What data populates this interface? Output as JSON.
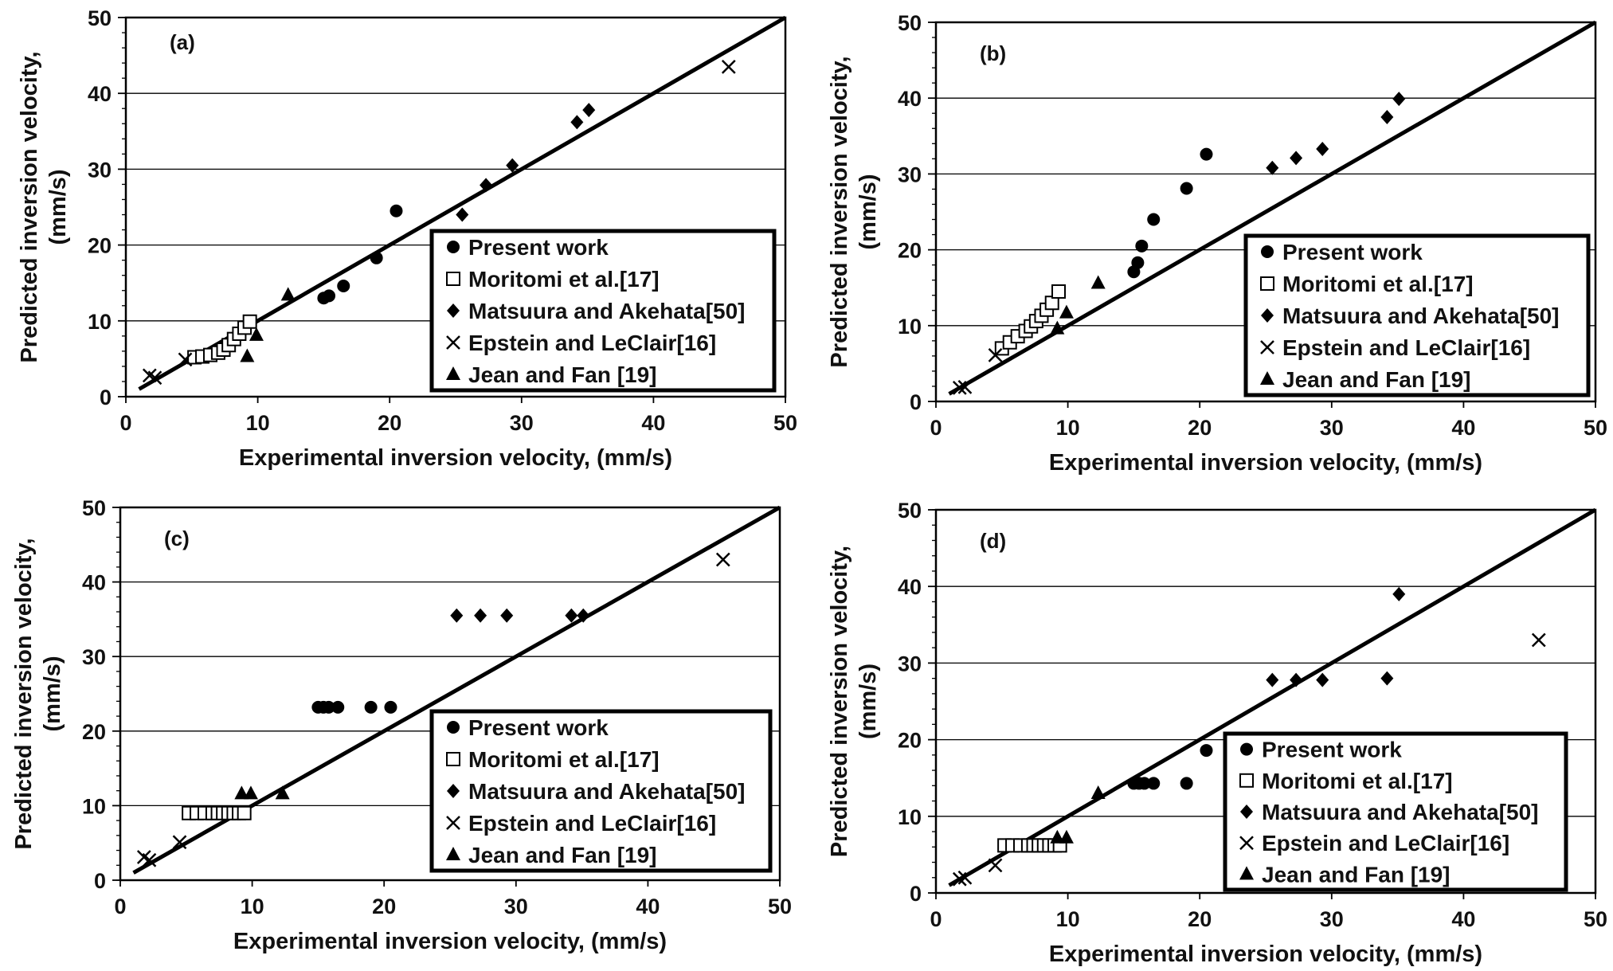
{
  "legend": {
    "entries": [
      "Present work",
      "Moritomi et al.[17]",
      "Matsuura and Akehata[50]",
      "Epstein and LeClair[16]",
      "Jean and Fan [19]"
    ]
  },
  "chart_data": [
    {
      "type": "scatter",
      "panel": "(a)",
      "xlabel": "Experimental inversion velocity, (mm/s)",
      "ylabel": "Predicted inversion velocity, (mm/s)",
      "xlim": [
        0,
        50
      ],
      "ylim": [
        0,
        50
      ],
      "xticks": [
        0,
        10,
        20,
        30,
        40,
        50
      ],
      "yticks": [
        0,
        10,
        20,
        30,
        40,
        50
      ],
      "grid": "horizontal",
      "legend_position": "bottom-right",
      "parity_line": [
        [
          1,
          1
        ],
        [
          50,
          50
        ]
      ],
      "series": [
        {
          "name": "Present work",
          "marker": "circle",
          "points": [
            [
              15,
              13
            ],
            [
              15.4,
              13.3
            ],
            [
              16.5,
              14.6
            ],
            [
              19,
              18.3
            ],
            [
              20.5,
              24.5
            ]
          ]
        },
        {
          "name": "Moritomi et al.[17]",
          "marker": "open-square",
          "points": [
            [
              5.2,
              5.2
            ],
            [
              5.8,
              5.3
            ],
            [
              6.4,
              5.5
            ],
            [
              7,
              5.8
            ],
            [
              7.4,
              6.2
            ],
            [
              7.8,
              6.8
            ],
            [
              8.2,
              7.6
            ],
            [
              8.6,
              8.3
            ],
            [
              9,
              9.1
            ],
            [
              9.4,
              9.9
            ]
          ]
        },
        {
          "name": "Matsuura and Akehata[50]",
          "marker": "diamond",
          "points": [
            [
              25.5,
              24
            ],
            [
              27.3,
              27.9
            ],
            [
              29.3,
              30.5
            ],
            [
              34.2,
              36.2
            ],
            [
              35.1,
              37.8
            ]
          ]
        },
        {
          "name": "Epstein and LeClair[16]",
          "marker": "cross",
          "points": [
            [
              1.8,
              2.8
            ],
            [
              2.2,
              2.5
            ],
            [
              4.5,
              4.9
            ],
            [
              45.7,
              43.5
            ]
          ]
        },
        {
          "name": "Jean and Fan [19]",
          "marker": "triangle",
          "points": [
            [
              9.2,
              5.3
            ],
            [
              9.9,
              8.1
            ],
            [
              12.3,
              13.4
            ]
          ]
        }
      ]
    },
    {
      "type": "scatter",
      "panel": "(b)",
      "xlabel": "Experimental inversion velocity, (mm/s)",
      "ylabel": "Predicted inversion velocity, (mm/s)",
      "xlim": [
        0,
        50
      ],
      "ylim": [
        0,
        50
      ],
      "xticks": [
        0,
        10,
        20,
        30,
        40,
        50
      ],
      "yticks": [
        0,
        10,
        20,
        30,
        40,
        50
      ],
      "grid": "horizontal",
      "legend_position": "bottom-right",
      "parity_line": [
        [
          1,
          1
        ],
        [
          50,
          50
        ]
      ],
      "series": [
        {
          "name": "Present work",
          "marker": "circle",
          "points": [
            [
              15,
              17.1
            ],
            [
              15.3,
              18.3
            ],
            [
              15.6,
              20.5
            ],
            [
              16.5,
              24
            ],
            [
              19,
              28.1
            ],
            [
              20.5,
              32.6
            ]
          ]
        },
        {
          "name": "Moritomi et al.[17]",
          "marker": "open-square",
          "points": [
            [
              5,
              7
            ],
            [
              5.6,
              7.8
            ],
            [
              6.2,
              8.6
            ],
            [
              6.8,
              9.3
            ],
            [
              7.2,
              9.9
            ],
            [
              7.6,
              10.6
            ],
            [
              8,
              11.3
            ],
            [
              8.4,
              12.1
            ],
            [
              8.8,
              13
            ],
            [
              9.3,
              14.5
            ]
          ]
        },
        {
          "name": "Matsuura and Akehata[50]",
          "marker": "diamond",
          "points": [
            [
              25.5,
              30.8
            ],
            [
              27.3,
              32.1
            ],
            [
              29.3,
              33.3
            ],
            [
              34.2,
              37.5
            ],
            [
              35.1,
              39.9
            ]
          ]
        },
        {
          "name": "Epstein and LeClair[16]",
          "marker": "cross",
          "points": [
            [
              1.8,
              1.8
            ],
            [
              2.2,
              1.9
            ],
            [
              4.5,
              6.1
            ]
          ]
        },
        {
          "name": "Jean and Fan [19]",
          "marker": "triangle",
          "points": [
            [
              9.2,
              9.6
            ],
            [
              9.9,
              11.7
            ],
            [
              12.3,
              15.6
            ]
          ]
        }
      ]
    },
    {
      "type": "scatter",
      "panel": "(c)",
      "xlabel": "Experimental inversion velocity, (mm/s)",
      "ylabel": "Predicted inversion velocity, (mm/s)",
      "xlim": [
        0,
        50
      ],
      "ylim": [
        0,
        50
      ],
      "xticks": [
        0,
        10,
        20,
        30,
        40,
        50
      ],
      "yticks": [
        0,
        10,
        20,
        30,
        40,
        50
      ],
      "grid": "horizontal",
      "legend_position": "bottom-right",
      "parity_line": [
        [
          1,
          1
        ],
        [
          50,
          50
        ]
      ],
      "series": [
        {
          "name": "Present work",
          "marker": "circle",
          "points": [
            [
              15,
              23.2
            ],
            [
              15.4,
              23.2
            ],
            [
              15.8,
              23.2
            ],
            [
              16.5,
              23.2
            ],
            [
              19,
              23.2
            ],
            [
              20.5,
              23.2
            ]
          ]
        },
        {
          "name": "Moritomi et al.[17]",
          "marker": "open-square",
          "points": [
            [
              5.2,
              9
            ],
            [
              5.8,
              9
            ],
            [
              6.4,
              9
            ],
            [
              7,
              9
            ],
            [
              7.4,
              9
            ],
            [
              7.8,
              9
            ],
            [
              8.2,
              9
            ],
            [
              8.6,
              9
            ],
            [
              9,
              9
            ],
            [
              9.4,
              9
            ]
          ]
        },
        {
          "name": "Matsuura and Akehata[50]",
          "marker": "diamond",
          "points": [
            [
              25.5,
              35.5
            ],
            [
              27.3,
              35.5
            ],
            [
              29.3,
              35.5
            ],
            [
              34.2,
              35.5
            ],
            [
              35.1,
              35.5
            ]
          ]
        },
        {
          "name": "Epstein and LeClair[16]",
          "marker": "cross",
          "points": [
            [
              1.8,
              3.1
            ],
            [
              2.2,
              2.7
            ],
            [
              4.5,
              5.1
            ],
            [
              45.7,
              43
            ]
          ]
        },
        {
          "name": "Jean and Fan [19]",
          "marker": "triangle",
          "points": [
            [
              9.2,
              11.6
            ],
            [
              9.9,
              11.6
            ],
            [
              12.3,
              11.6
            ]
          ]
        }
      ]
    },
    {
      "type": "scatter",
      "panel": "(d)",
      "xlabel": "Experimental inversion velocity, (mm/s)",
      "ylabel": "Predicted inversion velocity, (mm/s)",
      "xlim": [
        0,
        50
      ],
      "ylim": [
        0,
        50
      ],
      "xticks": [
        0,
        10,
        20,
        30,
        40,
        50
      ],
      "yticks": [
        0,
        10,
        20,
        30,
        40,
        50
      ],
      "grid": "horizontal",
      "legend_position": "bottom-right",
      "parity_line": [
        [
          1,
          1
        ],
        [
          50,
          50
        ]
      ],
      "series": [
        {
          "name": "Present work",
          "marker": "circle",
          "points": [
            [
              15,
              14.3
            ],
            [
              15.4,
              14.3
            ],
            [
              15.8,
              14.3
            ],
            [
              16.5,
              14.3
            ],
            [
              19,
              14.3
            ],
            [
              20.5,
              18.6
            ]
          ]
        },
        {
          "name": "Moritomi et al.[17]",
          "marker": "open-square",
          "points": [
            [
              5.2,
              6.2
            ],
            [
              5.8,
              6.2
            ],
            [
              6.4,
              6.2
            ],
            [
              7,
              6.2
            ],
            [
              7.4,
              6.2
            ],
            [
              7.8,
              6.2
            ],
            [
              8.2,
              6.2
            ],
            [
              8.6,
              6.2
            ],
            [
              9,
              6.2
            ],
            [
              9.4,
              6.2
            ]
          ]
        },
        {
          "name": "Matsuura and Akehata[50]",
          "marker": "diamond",
          "points": [
            [
              25.5,
              27.8
            ],
            [
              27.3,
              27.8
            ],
            [
              29.3,
              27.8
            ],
            [
              34.2,
              28
            ],
            [
              35.1,
              39
            ]
          ]
        },
        {
          "name": "Epstein and LeClair[16]",
          "marker": "cross",
          "points": [
            [
              1.8,
              1.8
            ],
            [
              2.2,
              2
            ],
            [
              4.5,
              3.6
            ],
            [
              45.7,
              33
            ]
          ]
        },
        {
          "name": "Jean and Fan [19]",
          "marker": "triangle",
          "points": [
            [
              9.2,
              7.2
            ],
            [
              9.9,
              7.2
            ],
            [
              12.3,
              13
            ]
          ]
        }
      ]
    }
  ]
}
